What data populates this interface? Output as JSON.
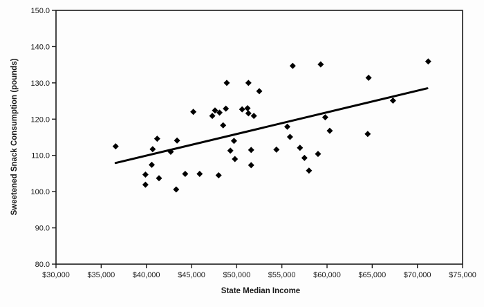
{
  "chart_data": {
    "type": "scatter",
    "title": "",
    "xlabel": "State Median Income",
    "ylabel": "Sweetened Snack Consumption (pounds)",
    "xlim": [
      30000,
      75000
    ],
    "ylim": [
      80,
      150
    ],
    "grid": false,
    "legend": "none",
    "marker": "diamond",
    "marker_color": "#000000",
    "axis_color": "#1a1a1a",
    "x_ticks": [
      30000,
      35000,
      40000,
      45000,
      50000,
      55000,
      60000,
      65000,
      70000,
      75000
    ],
    "x_tick_labels": [
      "$30,000",
      "$35,000",
      "$40,000",
      "$45,000",
      "$50,000",
      "$55,000",
      "$60,000",
      "$65,000",
      "$70,000",
      "$75,000"
    ],
    "y_ticks": [
      80,
      90,
      100,
      110,
      120,
      130,
      140,
      150
    ],
    "y_tick_labels": [
      "80.0",
      "90.0",
      "100.0",
      "110.0",
      "120.0",
      "130.0",
      "140.0",
      "150.0"
    ],
    "points": [
      [
        36600,
        112.5
      ],
      [
        39900,
        104.7
      ],
      [
        39900,
        101.9
      ],
      [
        40600,
        107.4
      ],
      [
        40700,
        111.7
      ],
      [
        41200,
        114.6
      ],
      [
        41400,
        103.7
      ],
      [
        42700,
        111.0
      ],
      [
        43300,
        100.6
      ],
      [
        43400,
        114.1
      ],
      [
        44300,
        104.9
      ],
      [
        45200,
        122.0
      ],
      [
        45900,
        104.9
      ],
      [
        47300,
        120.9
      ],
      [
        47600,
        122.4
      ],
      [
        48000,
        104.5
      ],
      [
        48100,
        121.8
      ],
      [
        48500,
        118.3
      ],
      [
        48800,
        122.9
      ],
      [
        48900,
        130.0
      ],
      [
        49300,
        111.3
      ],
      [
        49700,
        114.0
      ],
      [
        49800,
        109.0
      ],
      [
        50600,
        122.7
      ],
      [
        51200,
        123.0
      ],
      [
        51300,
        130.0
      ],
      [
        51300,
        121.6
      ],
      [
        51600,
        111.5
      ],
      [
        51600,
        107.3
      ],
      [
        51900,
        120.9
      ],
      [
        52500,
        127.7
      ],
      [
        54400,
        111.6
      ],
      [
        55600,
        117.9
      ],
      [
        55900,
        115.1
      ],
      [
        56200,
        134.7
      ],
      [
        57000,
        112.1
      ],
      [
        57500,
        109.3
      ],
      [
        58000,
        105.8
      ],
      [
        59000,
        110.4
      ],
      [
        59300,
        135.1
      ],
      [
        59800,
        120.5
      ],
      [
        60300,
        116.8
      ],
      [
        64500,
        115.9
      ],
      [
        64600,
        131.4
      ],
      [
        67300,
        125.1
      ],
      [
        71200,
        135.9
      ]
    ],
    "trendline": {
      "x1": 36600,
      "y1": 107.9,
      "x2": 71100,
      "y2": 128.5,
      "color": "#000000",
      "width": 3
    }
  }
}
